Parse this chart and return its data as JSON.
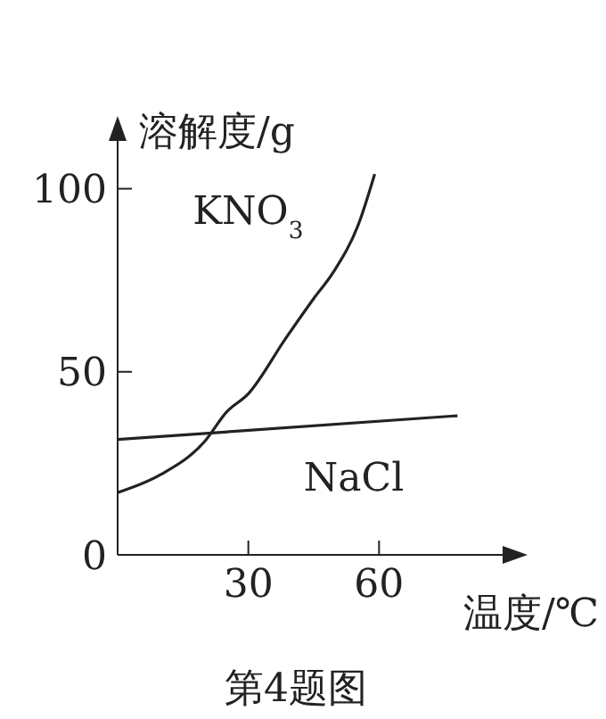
{
  "chart_data": {
    "type": "line",
    "xlabel": "温度/℃",
    "ylabel": "溶解度/g",
    "annotations": [
      "第4题图"
    ],
    "xlim": [
      0,
      90
    ],
    "ylim": [
      0,
      115
    ],
    "xticks": [
      30,
      60
    ],
    "yticks": [
      0,
      50,
      100
    ],
    "grid": false,
    "legend": false,
    "marker": "none",
    "line_style": "solid",
    "series": [
      {
        "name": "KNO$_{3}$",
        "color": "#222222",
        "x": [
          0,
          10,
          20,
          25,
          30,
          38.5,
          45,
          49.4,
          55.5,
          59
        ],
        "values": [
          17,
          22,
          31,
          39,
          44,
          59,
          70,
          77,
          91,
          104
        ]
      },
      {
        "name": "NaCl",
        "color": "#222222",
        "x": [
          0,
          78
        ],
        "values": [
          31.5,
          38
        ]
      }
    ]
  }
}
